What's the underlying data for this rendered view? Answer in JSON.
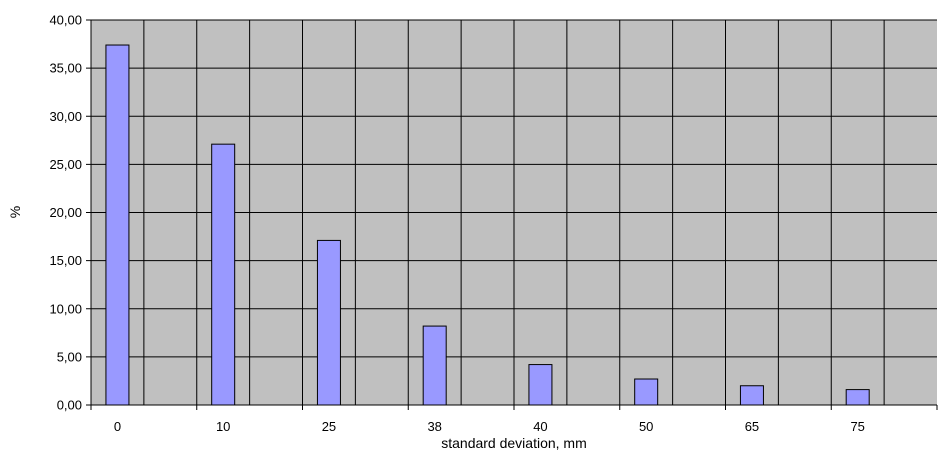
{
  "chart_data": {
    "type": "bar",
    "categories": [
      "0",
      "10",
      "25",
      "38",
      "40",
      "50",
      "65",
      "75"
    ],
    "values": [
      37.4,
      27.1,
      17.1,
      8.2,
      4.2,
      2.7,
      2.0,
      1.6
    ],
    "xlabel": "standard deviation, mm",
    "ylabel": "%",
    "ylim": [
      0,
      40
    ],
    "y_ticks": [
      "0,00",
      "5,00",
      "10,00",
      "15,00",
      "20,00",
      "25,00",
      "30,00",
      "35,00",
      "40,00"
    ],
    "grid": true,
    "legend": "none",
    "colors": {
      "plot_background": "#c0c0c0",
      "bar_fill": "#9999ff",
      "bar_stroke": "#000000",
      "grid": "#000000"
    }
  }
}
